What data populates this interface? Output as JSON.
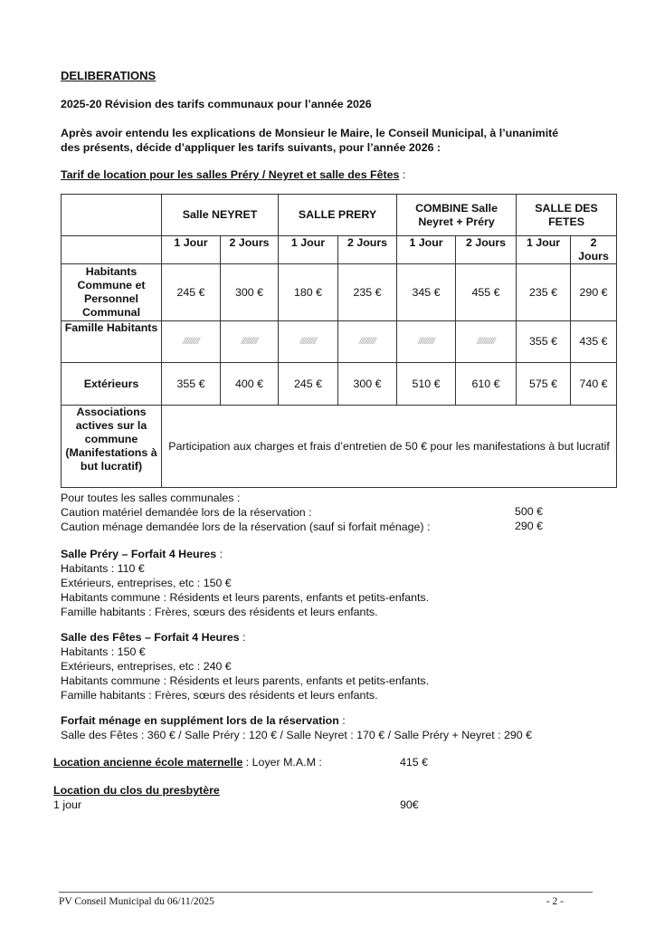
{
  "heading": "DELIBERATIONS",
  "deliberation_title": "2025-20 Révision des tarifs communaux pour l’année 2026",
  "intro_line1": "Après avoir entendu les explications de Monsieur le Maire, le Conseil Municipal, à l’unanimité",
  "intro_line2": "des présents, décide d’appliquer les tarifs suivants, pour l’année 2026 :",
  "table_title": "Tarif de location pour les salles Préry / Neyret et salle des Fêtes",
  "table_title_suffix": " :",
  "table": {
    "venues": [
      "Salle NEYRET",
      "SALLE PRERY",
      "COMBINE Salle Neyret + Préry",
      "SALLE DES FETES"
    ],
    "durations": [
      "1 Jour",
      "2 Jours",
      "1 Jour",
      "2 Jours",
      "1 Jour",
      "2 Jours",
      "1 Jour",
      "2 Jours"
    ],
    "rows": [
      {
        "label": "Habitants Commune et Personnel Communal",
        "values": [
          "245 €",
          "300 €",
          "180 €",
          "235 €",
          "345 €",
          "455 €",
          "235 €",
          "290 €"
        ]
      },
      {
        "label": "Famille Habitants",
        "values": [
          "//////////",
          "//////////",
          "//////////",
          "//////////",
          "//////////",
          "///////////",
          "355 €",
          "435 €"
        ]
      },
      {
        "label": "Extérieurs",
        "values": [
          "355 €",
          "400 €",
          "245 €",
          "300 €",
          "510 €",
          "610 €",
          "575 €",
          "740 €"
        ]
      }
    ],
    "associations_label": "Associations actives sur la commune (Manifestations à but lucratif)",
    "associations_text": "Participation aux charges et frais d’entretien de 50 € pour les manifestations à but lucratif"
  },
  "cautions": {
    "intro": "Pour toutes les salles communales :",
    "materiel_label": "Caution matériel demandée lors de la réservation :",
    "materiel_value": "500 €",
    "menage_label": "Caution ménage demandée lors de la réservation (sauf si forfait ménage) :",
    "menage_value": "290 €"
  },
  "prery_forfait": {
    "title": "Salle Préry – Forfait 4 Heures",
    "suffix": " :",
    "lines": [
      "Habitants : 110 €",
      "Extérieurs, entreprises, etc : 150 €",
      "Habitants commune : Résidents et leurs parents, enfants et petits-enfants.",
      "Famille habitants : Frères, sœurs des résidents et leurs enfants."
    ]
  },
  "fetes_forfait": {
    "title": "Salle des Fêtes – Forfait 4 Heures",
    "suffix": " :",
    "lines": [
      "Habitants : 150 €",
      "Extérieurs, entreprises, etc : 240 €",
      "Habitants commune : Résidents et leurs parents, enfants et petits-enfants.",
      "Famille habitants : Frères, sœurs des résidents et leurs enfants."
    ]
  },
  "menage": {
    "title": "Forfait ménage en supplément lors de la réservation",
    "suffix": " :",
    "line": "Salle des Fêtes : 360 € / Salle Préry : 120 € / Salle Neyret : 170 € / Salle Préry + Neyret : 290 €"
  },
  "ecole": {
    "title": "Location ancienne école maternelle",
    "label": " : Loyer M.A.M :",
    "value": "415 €"
  },
  "presbytere": {
    "title": "Location du clos du presbytère",
    "label": "1 jour",
    "value": "90€"
  },
  "footer": {
    "left": "PV Conseil Municipal du 06/11/2025",
    "right": "- 2 -"
  }
}
